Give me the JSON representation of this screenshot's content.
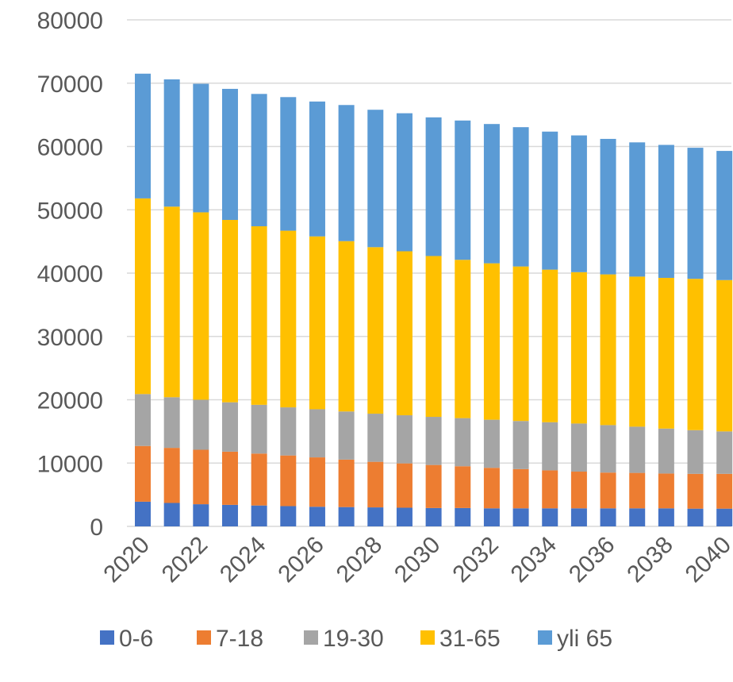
{
  "chart_data": {
    "type": "bar",
    "stacked": true,
    "categories": [
      "2020",
      "2021",
      "2022",
      "2023",
      "2024",
      "2025",
      "2026",
      "2027",
      "2028",
      "2029",
      "2030",
      "2031",
      "2032",
      "2033",
      "2034",
      "2035",
      "2036",
      "2037",
      "2038",
      "2039",
      "2040"
    ],
    "x_tick_labels": [
      "2020",
      "2022",
      "2024",
      "2026",
      "2028",
      "2030",
      "2032",
      "2034",
      "2036",
      "2038",
      "2040"
    ],
    "ylim": [
      0,
      80000
    ],
    "y_ticks": [
      "0",
      "10000",
      "20000",
      "30000",
      "40000",
      "50000",
      "60000",
      "70000",
      "80000"
    ],
    "grid": true,
    "legend_position": "bottom",
    "series": [
      {
        "name": "0-6",
        "color": "#4472C4",
        "values": [
          3900,
          3700,
          3500,
          3400,
          3300,
          3200,
          3100,
          3050,
          3000,
          2950,
          2900,
          2900,
          2850,
          2850,
          2850,
          2850,
          2850,
          2850,
          2850,
          2800,
          2800
        ]
      },
      {
        "name": "7-18",
        "color": "#ED7D31",
        "values": [
          8800,
          8700,
          8600,
          8400,
          8200,
          8000,
          7800,
          7500,
          7200,
          7000,
          6800,
          6600,
          6400,
          6200,
          6000,
          5800,
          5650,
          5600,
          5500,
          5500,
          5500
        ]
      },
      {
        "name": "19-30",
        "color": "#A5A5A5",
        "values": [
          8200,
          8000,
          7900,
          7800,
          7700,
          7600,
          7600,
          7600,
          7600,
          7600,
          7600,
          7600,
          7600,
          7600,
          7600,
          7600,
          7500,
          7300,
          7100,
          6900,
          6700
        ]
      },
      {
        "name": "31-65",
        "color": "#FFC000",
        "values": [
          30900,
          30100,
          29600,
          28800,
          28200,
          27900,
          27300,
          26900,
          26300,
          25900,
          25400,
          25000,
          24700,
          24400,
          24100,
          23900,
          23800,
          23700,
          23800,
          23900,
          23900
        ]
      },
      {
        "name": "yli 65",
        "color": "#5B9BD5",
        "values": [
          19700,
          20100,
          20300,
          20700,
          20900,
          21100,
          21300,
          21500,
          21700,
          21800,
          21900,
          22000,
          22000,
          22000,
          21800,
          21600,
          21400,
          21200,
          21000,
          20700,
          20400
        ]
      }
    ]
  }
}
